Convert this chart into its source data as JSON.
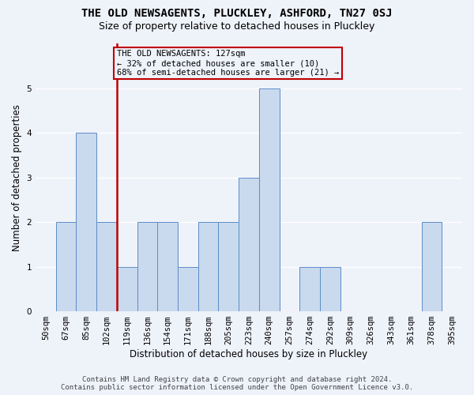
{
  "title": "THE OLD NEWSAGENTS, PLUCKLEY, ASHFORD, TN27 0SJ",
  "subtitle": "Size of property relative to detached houses in Pluckley",
  "xlabel": "Distribution of detached houses by size in Pluckley",
  "ylabel": "Number of detached properties",
  "footer_line1": "Contains HM Land Registry data © Crown copyright and database right 2024.",
  "footer_line2": "Contains public sector information licensed under the Open Government Licence v3.0.",
  "bins": [
    "50sqm",
    "67sqm",
    "85sqm",
    "102sqm",
    "119sqm",
    "136sqm",
    "154sqm",
    "171sqm",
    "188sqm",
    "205sqm",
    "223sqm",
    "240sqm",
    "257sqm",
    "274sqm",
    "292sqm",
    "309sqm",
    "326sqm",
    "343sqm",
    "361sqm",
    "378sqm",
    "395sqm"
  ],
  "values": [
    0,
    2,
    4,
    2,
    1,
    2,
    2,
    1,
    2,
    2,
    3,
    5,
    0,
    1,
    1,
    0,
    0,
    0,
    0,
    2,
    0
  ],
  "bar_color": "#c9d9ee",
  "bar_edge_color": "#5b8dc8",
  "vline_position": 3.5,
  "vline_color": "#c00000",
  "annotation_text_line1": "THE OLD NEWSAGENTS: 127sqm",
  "annotation_text_line2": "← 32% of detached houses are smaller (10)",
  "annotation_text_line3": "68% of semi-detached houses are larger (21) →",
  "annotation_box_color": "#c00000",
  "ylim": [
    0,
    6
  ],
  "yticks": [
    0,
    1,
    2,
    3,
    4,
    5,
    6
  ],
  "background_color": "#eef2f9",
  "grid_color": "#ffffff",
  "title_fontsize": 10,
  "subtitle_fontsize": 9,
  "axis_label_fontsize": 8.5,
  "tick_fontsize": 7.5,
  "annotation_fontsize": 7.5,
  "footer_fontsize": 6.5
}
